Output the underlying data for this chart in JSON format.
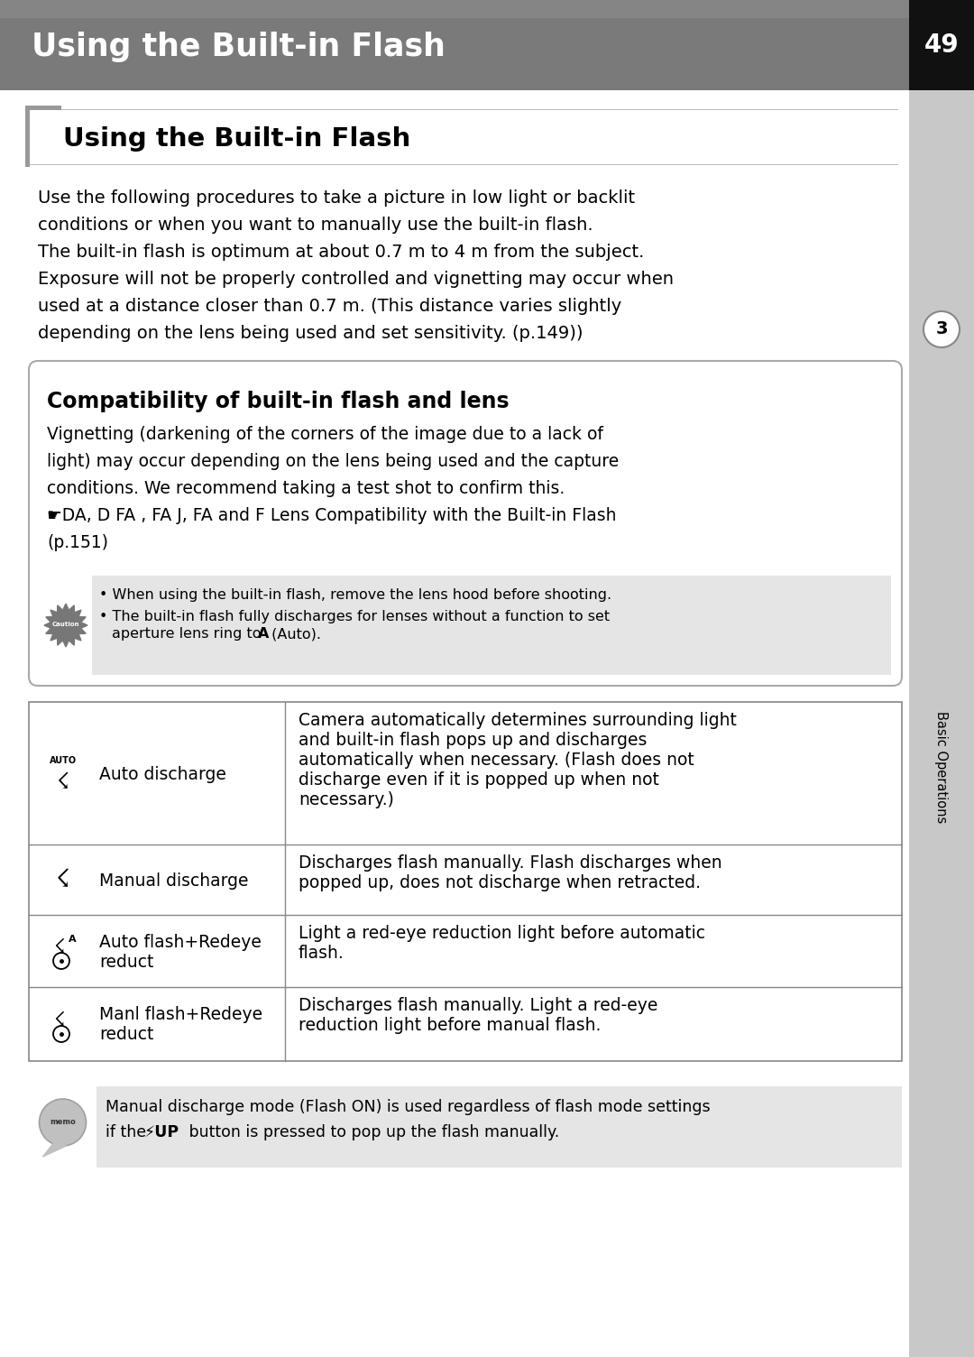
{
  "page_bg": "#ffffff",
  "sidebar_bg": "#c8c8c8",
  "header_bg": "#7a7a7a",
  "header_text": "Using the Built-in Flash",
  "header_text_color": "#ffffff",
  "page_number": "49",
  "section_title": "Using the Built-in Flash",
  "body_text_lines": [
    "Use the following procedures to take a picture in low light or backlit",
    "conditions or when you want to manually use the built-in flash.",
    "The built-in flash is optimum at about 0.7 m to 4 m from the subject.",
    "Exposure will not be properly controlled and vignetting may occur when",
    "used at a distance closer than 0.7 m. (This distance varies slightly",
    "depending on the lens being used and set sensitivity. (p.149))"
  ],
  "compat_box_title": "Compatibility of built-in flash and lens",
  "compat_box_text": [
    "Vignetting (darkening of the corners of the image due to a lack of",
    "light) may occur depending on the lens being used and the capture",
    "conditions. We recommend taking a test shot to confirm this.",
    "☛DA, D FA , FA J, FA and F Lens Compatibility with the Built-in Flash",
    "(p.151)"
  ],
  "caution_bullet1": "When using the built-in flash, remove the lens hood before shooting.",
  "caution_bullet2a": "The built-in flash fully discharges for lenses without a function to set",
  "caution_bullet2b": "aperture lens ring to ",
  "caution_bullet2b_bold": "A",
  "caution_bullet2b_end": " (Auto).",
  "table_rows": [
    {
      "label": "Auto discharge",
      "description": "Camera automatically determines surrounding light\nand built-in flash pops up and discharges\nautomatically when necessary. (Flash does not\ndischarge even if it is popped up when not\nnecessary.)"
    },
    {
      "label": "Manual discharge",
      "description": "Discharges flash manually. Flash discharges when\npopped up, does not discharge when retracted."
    },
    {
      "label": "Auto flash+Redeye\nreduct",
      "description": "Light a red-eye reduction light before automatic\nflash."
    },
    {
      "label": "Manl flash+Redeye\nreduct",
      "description": "Discharges flash manually. Light a red-eye\nreduction light before manual flash."
    }
  ],
  "memo_line1": "Manual discharge mode (Flash ON) is used regardless of flash mode settings",
  "memo_line2a": "if the ",
  "memo_line2b": "⚡UP",
  "memo_line2c": " button is pressed to pop up the flash manually.",
  "sidebar_label": "Basic Operations",
  "sidebar_number": "3"
}
